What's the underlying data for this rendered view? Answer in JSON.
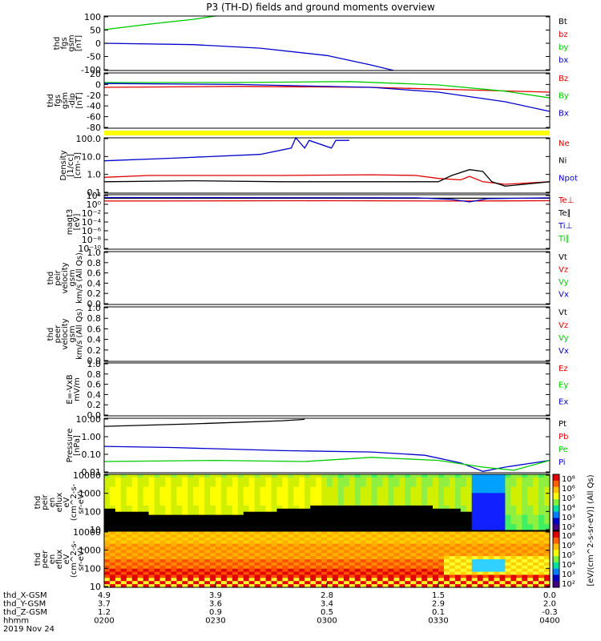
{
  "title": "P3 (TH-D) fields and ground moments overview",
  "colors": {
    "black": "#000000",
    "red": "#e00000",
    "green": "#00cc00",
    "blue": "#0000cc",
    "yellow": "#ffff00"
  },
  "chart_data": [
    {
      "type": "line",
      "name": "fgs_btot",
      "ylabel_lines": [
        "thd",
        "fgs",
        "gsm",
        "[nT]"
      ],
      "yticks": [
        "100",
        "50",
        "0",
        "-50",
        "-100"
      ],
      "ylim": [
        -100,
        100
      ],
      "legend": [
        {
          "label": "Bt",
          "color": "black"
        },
        {
          "label": "bz",
          "color": "red"
        },
        {
          "label": "by",
          "color": "green"
        },
        {
          "label": "bx",
          "color": "blue"
        }
      ],
      "series": [
        {
          "color": "green",
          "x": [
            0,
            0.1,
            0.2,
            0.25
          ],
          "y": [
            50,
            70,
            88,
            100
          ]
        },
        {
          "color": "blue",
          "x": [
            0,
            0.2,
            0.35,
            0.5,
            0.6,
            0.65
          ],
          "y": [
            0,
            -5,
            -18,
            -45,
            -80,
            -100
          ]
        }
      ]
    },
    {
      "type": "line",
      "name": "fgs_offset",
      "ylabel_lines": [
        "thd",
        "fgs",
        "gsm",
        "-dip",
        "[nT]"
      ],
      "yticks": [
        "20",
        "0",
        "-20",
        "-40",
        "-60",
        "-80"
      ],
      "ylim": [
        -95,
        20
      ],
      "legend": [
        {
          "label": "Bz",
          "color": "red"
        },
        {
          "label": "By",
          "color": "green"
        },
        {
          "label": "Bx",
          "color": "blue"
        }
      ],
      "series": [
        {
          "color": "red",
          "x": [
            0,
            0.3,
            0.6,
            0.8,
            1.0
          ],
          "y": [
            -10,
            -8,
            -10,
            -15,
            -20
          ]
        },
        {
          "color": "green",
          "x": [
            0,
            0.3,
            0.55,
            0.75,
            0.9,
            1.0
          ],
          "y": [
            0,
            0,
            2,
            -5,
            -18,
            -32
          ]
        },
        {
          "color": "blue",
          "x": [
            0,
            0.3,
            0.6,
            0.75,
            0.9,
            1.0
          ],
          "y": [
            -2,
            -4,
            -10,
            -20,
            -40,
            -60
          ]
        }
      ]
    },
    {
      "type": "log-line",
      "name": "density",
      "ylabel_lines": [
        "Density",
        "[1/cc]",
        "[cm-3]"
      ],
      "yticks": [
        "100.0",
        "10.0",
        "1.0",
        "0.1"
      ],
      "ylim": [
        0.05,
        300
      ],
      "legend": [
        {
          "label": "Ne",
          "color": "red"
        },
        {
          "label": "Ni",
          "color": "black"
        },
        {
          "label": "Npot",
          "color": "blue"
        }
      ],
      "series": [
        {
          "color": "blue",
          "x": [
            0,
            0.15,
            0.35,
            0.42,
            0.43,
            0.45,
            0.46,
            0.51,
            0.52,
            0.55
          ],
          "y": [
            8,
            12,
            22,
            60,
            300,
            60,
            200,
            60,
            200,
            200
          ]
        },
        {
          "color": "red",
          "x": [
            0,
            0.1,
            0.4,
            0.6,
            0.7,
            0.75,
            0.8,
            0.82,
            0.85,
            0.9,
            1.0
          ],
          "y": [
            0.6,
            0.8,
            0.8,
            0.9,
            0.8,
            0.5,
            0.4,
            0.7,
            0.3,
            0.2,
            0.3
          ]
        },
        {
          "color": "black",
          "x": [
            0,
            0.2,
            0.4,
            0.6,
            0.7,
            0.75,
            0.78,
            0.82,
            0.85,
            0.87,
            0.9,
            1.0
          ],
          "y": [
            0.3,
            0.35,
            0.3,
            0.3,
            0.3,
            0.3,
            0.8,
            2.0,
            1.5,
            0.3,
            0.15,
            0.3
          ]
        }
      ]
    },
    {
      "type": "log-line",
      "name": "temperature",
      "ylabel_lines": [
        "magt3",
        "[eV]"
      ],
      "yticks": [
        "10²",
        "10⁰",
        "10⁻²",
        "10⁻⁴",
        "10⁻⁶",
        "10⁻⁸",
        "10⁻¹⁰"
      ],
      "ylim": [
        1e-11,
        300
      ],
      "legend": [
        {
          "label": "Te⊥",
          "color": "red"
        },
        {
          "label": "Te∥",
          "color": "black"
        },
        {
          "label": "Ti⊥",
          "color": "blue"
        },
        {
          "label": "Ti∥",
          "color": "green"
        }
      ],
      "series": [
        {
          "color": "black",
          "x": [
            0,
            1.0
          ],
          "y": [
            40,
            40
          ]
        },
        {
          "color": "red",
          "x": [
            0,
            0.5,
            0.8,
            1.0
          ],
          "y": [
            8,
            10,
            8,
            10
          ]
        },
        {
          "color": "blue",
          "x": [
            0,
            0.7,
            0.78,
            0.82,
            0.86,
            1.0
          ],
          "y": [
            60,
            50,
            20,
            5,
            30,
            50
          ]
        }
      ]
    },
    {
      "type": "line",
      "name": "peir_velocity",
      "ylabel_lines": [
        "thd",
        "peir",
        "velocity",
        "gsm",
        "km/s (All Qs)"
      ],
      "yticks": [
        "1.0",
        "0.8",
        "0.6",
        "0.4",
        "0.2",
        "0.0"
      ],
      "ylim": [
        0,
        1
      ],
      "legend": [
        {
          "label": "Vt",
          "color": "black"
        },
        {
          "label": "Vz",
          "color": "red"
        },
        {
          "label": "Vy",
          "color": "green"
        },
        {
          "label": "Vx",
          "color": "blue"
        }
      ],
      "series": []
    },
    {
      "type": "line",
      "name": "peer_velocity",
      "ylabel_lines": [
        "thd",
        "peer",
        "velocity",
        "gsm",
        "km/s (All Qs)"
      ],
      "yticks": [
        "1.0",
        "0.8",
        "0.6",
        "0.4",
        "0.2",
        "0.0"
      ],
      "ylim": [
        0,
        1
      ],
      "legend": [
        {
          "label": "Vt",
          "color": "black"
        },
        {
          "label": "Vz",
          "color": "red"
        },
        {
          "label": "Vy",
          "color": "green"
        },
        {
          "label": "Vx",
          "color": "blue"
        }
      ],
      "series": []
    },
    {
      "type": "line",
      "name": "efield",
      "ylabel_lines": [
        "E=-VxB",
        "mV/m"
      ],
      "yticks": [
        "1.0",
        "0.8",
        "0.6",
        "0.4",
        "0.2",
        "0.0"
      ],
      "ylim": [
        0,
        1
      ],
      "legend": [
        {
          "label": "Ez",
          "color": "red"
        },
        {
          "label": "Ey",
          "color": "green"
        },
        {
          "label": "Ex",
          "color": "blue"
        }
      ],
      "series": []
    },
    {
      "type": "log-line",
      "name": "pressure",
      "ylabel_lines": [
        "Pressure",
        "[nPa]"
      ],
      "yticks": [
        "10.00",
        "1.00",
        "0.10",
        "0.01"
      ],
      "ylim": [
        0.004,
        30
      ],
      "legend": [
        {
          "label": "Pt",
          "color": "black"
        },
        {
          "label": "Pb",
          "color": "red"
        },
        {
          "label": "Pe",
          "color": "green"
        },
        {
          "label": "Pi",
          "color": "blue"
        }
      ],
      "series": [
        {
          "color": "black",
          "x": [
            0,
            0.2,
            0.4,
            0.45
          ],
          "y": [
            8,
            12,
            20,
            25
          ]
        },
        {
          "color": "blue",
          "x": [
            0,
            0.15,
            0.4,
            0.6,
            0.72,
            0.8,
            0.85,
            0.9,
            1.0
          ],
          "y": [
            0.3,
            0.25,
            0.15,
            0.12,
            0.07,
            0.02,
            0.005,
            0.01,
            0.03
          ]
        },
        {
          "color": "green",
          "x": [
            0,
            0.25,
            0.45,
            0.6,
            0.75,
            0.85,
            0.92,
            1.0
          ],
          "y": [
            0.025,
            0.03,
            0.025,
            0.05,
            0.03,
            0.01,
            0.006,
            0.03
          ]
        }
      ]
    },
    {
      "type": "heatmap",
      "name": "peir_eflux",
      "ylabel_lines": [
        "thd",
        "peir",
        "en",
        "eflux",
        "eV",
        "(cm^2-s-",
        "sr-eV)"
      ],
      "yticks": [
        "10000",
        "1000",
        "100",
        "10"
      ]
    },
    {
      "type": "heatmap",
      "name": "peer_eflux",
      "ylabel_lines": [
        "thd",
        "peer",
        "en",
        "eflux",
        "eV",
        "(cm^2-s-",
        "sr-eV)"
      ],
      "yticks": [
        "10000",
        "1000",
        "100",
        "10"
      ]
    }
  ],
  "colorbar": {
    "ticks": [
      "10⁸",
      "10⁶",
      "10⁵",
      "10⁴",
      "10³",
      "10²"
    ],
    "label": "[eV/(cm^2-s-sr-eV)] (All Qs)"
  },
  "xaxis": {
    "rows": [
      {
        "label": "thd_X-GSM",
        "values": [
          "4.9",
          "3.9",
          "2.8",
          "1.5",
          "0.0"
        ]
      },
      {
        "label": "thd_Y-GSM",
        "values": [
          "3.7",
          "3.6",
          "3.4",
          "2.9",
          "2.0"
        ]
      },
      {
        "label": "thd_Z-GSM",
        "values": [
          "1.2",
          "0.9",
          "0.5",
          "0.1",
          "-0.3"
        ]
      },
      {
        "label": "hhmm",
        "values": [
          "0200",
          "0230",
          "0300",
          "0330",
          "0400"
        ]
      }
    ],
    "date": "2019 Nov 24"
  }
}
